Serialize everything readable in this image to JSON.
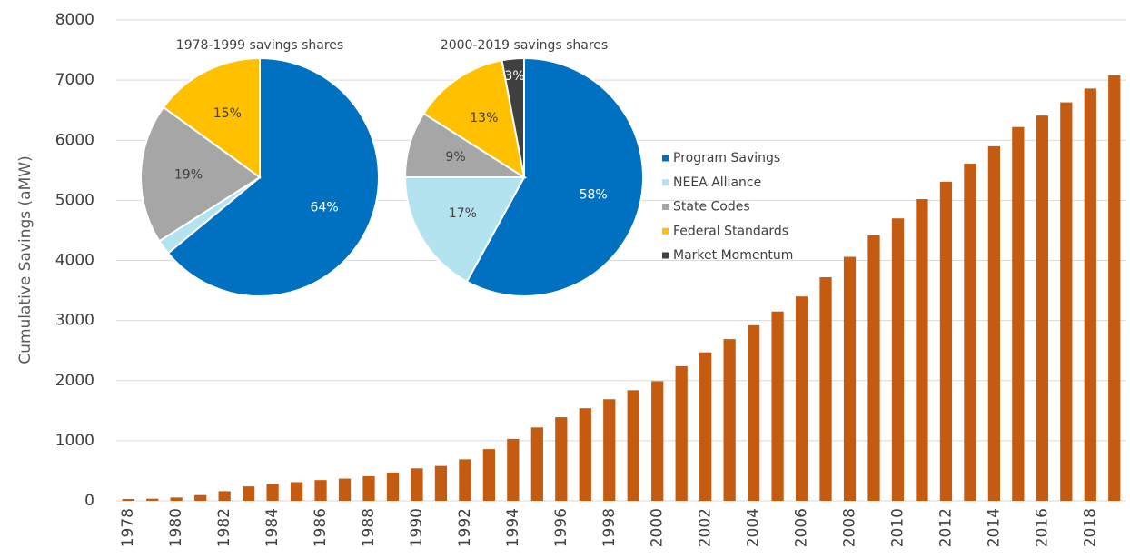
{
  "chart_data": [
    {
      "type": "bar",
      "y_label": "Cumulative Savings (aMW)",
      "color": "#c55a11",
      "grid": true,
      "ylim": [
        0,
        8000
      ],
      "yticks": [
        0,
        1000,
        2000,
        3000,
        4000,
        5000,
        6000,
        7000,
        8000
      ],
      "categories": [
        "1978",
        null,
        "1980",
        null,
        "1982",
        null,
        "1984",
        null,
        "1986",
        null,
        "1988",
        null,
        "1990",
        null,
        "1992",
        null,
        "1994",
        null,
        "1996",
        null,
        "1998",
        null,
        "2000",
        null,
        "2002",
        null,
        "2004",
        null,
        "2006",
        null,
        "2008",
        null,
        "2010",
        null,
        "2012",
        null,
        "2014",
        null,
        "2016",
        null,
        "2018",
        null
      ],
      "values": [
        30,
        35,
        55,
        95,
        160,
        240,
        280,
        310,
        345,
        370,
        410,
        470,
        540,
        580,
        690,
        860,
        1030,
        1220,
        1390,
        1540,
        1690,
        1840,
        1990,
        2240,
        2470,
        2690,
        2920,
        3150,
        3400,
        3720,
        4060,
        4420,
        4700,
        5020,
        5310,
        5610,
        5900,
        6220,
        6410,
        6630,
        6860,
        7080
      ]
    },
    {
      "type": "pie",
      "title": "1978-1999 savings shares",
      "categories": [
        "Program Savings",
        "NEEA Alliance",
        "State Codes",
        "Federal Standards"
      ],
      "values": [
        64,
        2,
        19,
        15
      ],
      "value_labels": [
        "64%",
        null,
        "19%",
        "15%"
      ],
      "colors": [
        "#0070c0",
        "#b4e3f0",
        "#a6a6a6",
        "#ffc000"
      ]
    },
    {
      "type": "pie",
      "title": "2000-2019 savings shares",
      "legend": "right",
      "categories": [
        "Program Savings",
        "NEEA Alliance",
        "State Codes",
        "Federal Standards",
        "Market Momentum"
      ],
      "values": [
        58,
        17,
        9,
        13,
        3
      ],
      "value_labels": [
        "58%",
        "17%",
        "9%",
        "13%",
        "3%"
      ],
      "colors": [
        "#0070c0",
        "#b4e3f0",
        "#a6a6a6",
        "#ffc000",
        "#404040"
      ]
    }
  ]
}
